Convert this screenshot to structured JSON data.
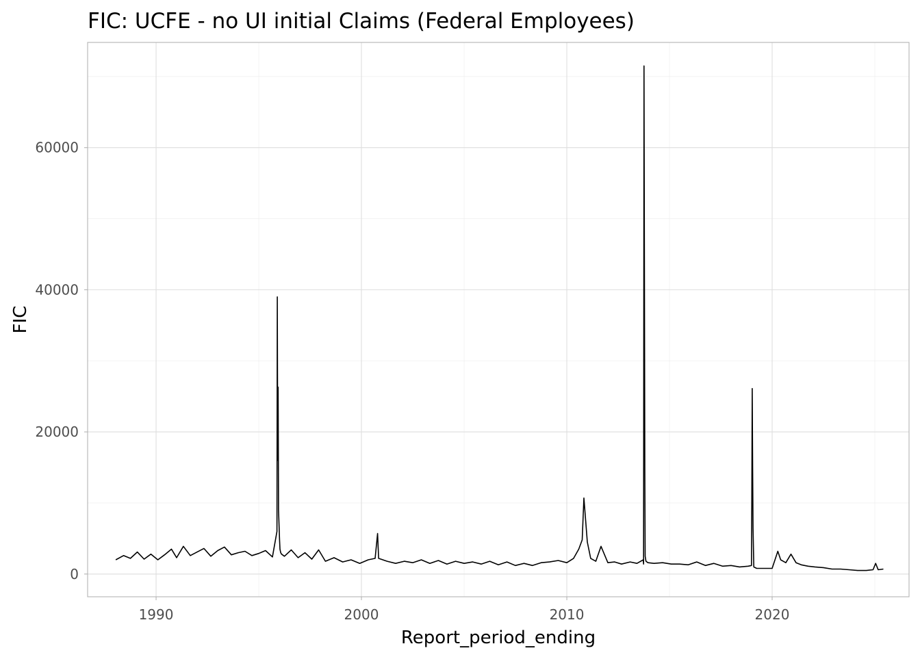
{
  "chart_data": {
    "type": "line",
    "title": "FIC: UCFE - no UI initial Claims (Federal Employees)",
    "xlabel": "Report_period_ending",
    "ylabel": "FIC",
    "x_type": "date",
    "xlim": [
      "1986-09-01",
      "2026-09-01"
    ],
    "ylim": [
      -3200,
      74800
    ],
    "x_ticks": [
      {
        "value": "1990-01-01",
        "label": "1990"
      },
      {
        "value": "2000-01-01",
        "label": "2000"
      },
      {
        "value": "2010-01-01",
        "label": "2010"
      },
      {
        "value": "2020-01-01",
        "label": "2020"
      }
    ],
    "y_ticks": [
      {
        "value": 0,
        "label": "0"
      },
      {
        "value": 20000,
        "label": "20000"
      },
      {
        "value": 40000,
        "label": "40000"
      },
      {
        "value": 60000,
        "label": "60000"
      }
    ],
    "grid": true,
    "legend": "none",
    "line_color": "#000000",
    "series": [
      {
        "x": [
          "1988-01-15",
          "1988-06-01",
          "1988-10-01",
          "1989-02-01",
          "1989-06-01",
          "1989-10-01",
          "1990-02-01",
          "1990-06-01",
          "1990-10-01",
          "1991-01-01",
          "1991-05-01",
          "1991-09-01",
          "1992-01-01",
          "1992-05-01",
          "1992-09-01",
          "1993-01-01",
          "1993-05-01",
          "1993-09-01",
          "1994-01-01",
          "1994-05-01",
          "1994-09-01",
          "1995-01-01",
          "1995-05-01",
          "1995-09-01",
          "1995-11-20",
          "1995-11-27",
          "1995-12-04",
          "1995-12-11",
          "1995-12-18",
          "1995-12-30",
          "1996-01-06",
          "1996-01-13",
          "1996-01-27",
          "1996-02-10",
          "1996-04-01",
          "1996-08-01",
          "1996-12-01",
          "1997-04-01",
          "1997-08-01",
          "1997-12-01",
          "1998-04-01",
          "1998-09-01",
          "1999-02-01",
          "1999-07-01",
          "1999-12-01",
          "2000-05-01",
          "2000-09-01",
          "2000-10-14",
          "2000-11-01",
          "2001-04-01",
          "2001-09-01",
          "2002-02-01",
          "2002-07-01",
          "2002-12-01",
          "2003-05-01",
          "2003-10-01",
          "2004-03-01",
          "2004-08-01",
          "2005-01-01",
          "2005-06-01",
          "2005-11-01",
          "2006-04-01",
          "2006-09-01",
          "2007-02-01",
          "2007-07-01",
          "2007-12-01",
          "2008-05-01",
          "2008-10-01",
          "2009-03-01",
          "2009-08-01",
          "2010-01-01",
          "2010-05-01",
          "2010-08-01",
          "2010-10-01",
          "2010-11-01",
          "2011-01-01",
          "2011-03-01",
          "2011-06-01",
          "2011-09-01",
          "2012-01-01",
          "2012-05-01",
          "2012-09-01",
          "2013-02-01",
          "2013-06-01",
          "2013-09-21",
          "2013-09-28",
          "2013-10-05",
          "2013-10-12",
          "2013-10-19",
          "2013-10-26",
          "2013-11-09",
          "2013-12-15",
          "2014-04-01",
          "2014-09-01",
          "2015-02-01",
          "2015-07-01",
          "2015-12-01",
          "2016-05-01",
          "2016-10-01",
          "2017-03-01",
          "2017-08-01",
          "2018-01-01",
          "2018-06-01",
          "2018-11-01",
          "2018-12-29",
          "2019-01-05",
          "2019-01-12",
          "2019-01-19",
          "2019-01-26",
          "2019-02-09",
          "2019-04-01",
          "2019-09-01",
          "2020-01-01",
          "2020-04-11",
          "2020-06-01",
          "2020-09-01",
          "2020-12-01",
          "2021-03-01",
          "2021-06-01",
          "2021-10-01",
          "2022-02-01",
          "2022-07-01",
          "2022-12-01",
          "2023-05-01",
          "2023-10-01",
          "2024-03-01",
          "2024-08-01",
          "2024-11-30",
          "2025-01-15",
          "2025-03-01",
          "2025-06-01"
        ],
        "y": [
          2000,
          2600,
          2200,
          3100,
          2100,
          2800,
          2000,
          2700,
          3500,
          2300,
          3900,
          2600,
          3100,
          3600,
          2500,
          3300,
          3800,
          2700,
          3000,
          3200,
          2600,
          2900,
          3300,
          2400,
          6000,
          39000,
          16000,
          26300,
          9000,
          6500,
          4800,
          3500,
          3000,
          2800,
          2500,
          3400,
          2300,
          3000,
          2100,
          3400,
          1800,
          2300,
          1700,
          2000,
          1500,
          2000,
          2200,
          5700,
          2200,
          1800,
          1500,
          1800,
          1600,
          2000,
          1500,
          1900,
          1400,
          1800,
          1500,
          1700,
          1400,
          1800,
          1300,
          1700,
          1200,
          1500,
          1200,
          1600,
          1700,
          1900,
          1600,
          2200,
          3500,
          4800,
          10700,
          4500,
          2200,
          1800,
          3900,
          1600,
          1700,
          1400,
          1700,
          1500,
          2000,
          1400,
          71500,
          44000,
          14500,
          2500,
          1800,
          1600,
          1500,
          1600,
          1400,
          1400,
          1300,
          1700,
          1200,
          1500,
          1100,
          1200,
          1000,
          1100,
          1200,
          10500,
          26100,
          15000,
          6500,
          1000,
          800,
          800,
          800,
          3200,
          2000,
          1600,
          2800,
          1600,
          1300,
          1100,
          1000,
          900,
          700,
          700,
          600,
          500,
          500,
          600,
          1500,
          600,
          700
        ]
      }
    ]
  }
}
